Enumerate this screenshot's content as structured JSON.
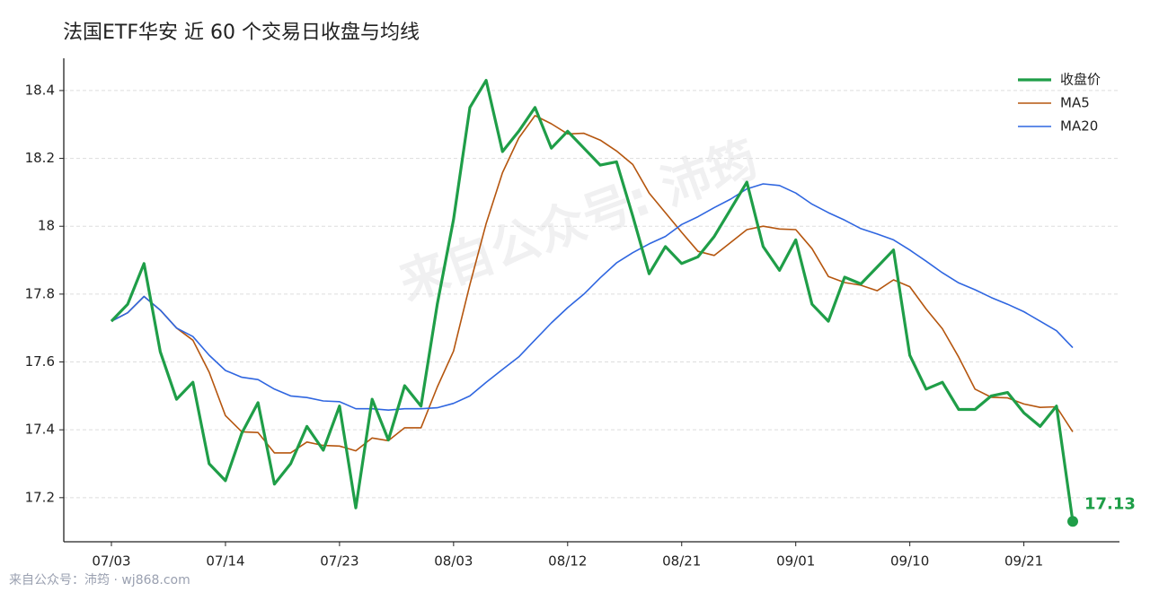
{
  "chart_data": {
    "type": "line",
    "title": "法国ETF华安 近 60 个交易日收盘与均线",
    "watermark": "来自公众号: 沛筠",
    "footer": "来自公众号：沛筠 · wj868.com",
    "categories": [
      "07/03",
      null,
      null,
      null,
      null,
      null,
      null,
      "07/14",
      null,
      null,
      null,
      null,
      null,
      null,
      "07/23",
      null,
      null,
      null,
      null,
      null,
      null,
      "08/03",
      null,
      null,
      null,
      null,
      null,
      null,
      "08/12",
      null,
      null,
      null,
      null,
      null,
      null,
      "08/21",
      null,
      null,
      null,
      null,
      null,
      null,
      "09/01",
      null,
      null,
      null,
      null,
      null,
      null,
      "09/10",
      null,
      null,
      null,
      null,
      null,
      null,
      "09/21",
      null,
      null,
      null
    ],
    "series": [
      {
        "name": "收盘价",
        "color": "#1f9e48",
        "values": [
          17.72,
          17.77,
          17.89,
          17.63,
          17.49,
          17.54,
          17.3,
          17.25,
          17.39,
          17.48,
          17.24,
          17.3,
          17.41,
          17.34,
          17.47,
          17.17,
          17.49,
          17.37,
          17.53,
          17.47,
          17.77,
          18.02,
          18.35,
          18.43,
          18.22,
          18.28,
          18.35,
          18.23,
          18.28,
          18.23,
          18.18,
          18.19,
          18.03,
          17.86,
          17.94,
          17.89,
          17.91,
          17.97,
          18.05,
          18.13,
          17.94,
          17.87,
          17.96,
          17.77,
          17.72,
          17.85,
          17.83,
          17.88,
          17.93,
          17.62,
          17.52,
          17.54,
          17.46,
          17.46,
          17.5,
          17.51,
          17.45,
          17.41,
          17.47,
          17.13
        ]
      },
      {
        "name": "MA5",
        "color": "#b5560f",
        "values": [
          17.72,
          17.745,
          17.793,
          17.753,
          17.7,
          17.664,
          17.57,
          17.442,
          17.394,
          17.392,
          17.332,
          17.332,
          17.364,
          17.354,
          17.352,
          17.338,
          17.376,
          17.368,
          17.406,
          17.406,
          17.526,
          17.632,
          17.828,
          18.008,
          18.158,
          18.26,
          18.326,
          18.302,
          18.272,
          18.274,
          18.254,
          18.222,
          18.182,
          18.098,
          18.04,
          17.982,
          17.926,
          17.914,
          17.952,
          17.99,
          18.0,
          17.992,
          17.99,
          17.934,
          17.852,
          17.834,
          17.826,
          17.81,
          17.842,
          17.822,
          17.756,
          17.698,
          17.614,
          17.52,
          17.496,
          17.494,
          17.476,
          17.466,
          17.468,
          17.394
        ]
      },
      {
        "name": "MA20",
        "color": "#2f66e0",
        "values": [
          17.72,
          17.745,
          17.793,
          17.753,
          17.7,
          17.675,
          17.62,
          17.575,
          17.555,
          17.548,
          17.52,
          17.5,
          17.495,
          17.485,
          17.483,
          17.462,
          17.462,
          17.458,
          17.462,
          17.462,
          17.465,
          17.478,
          17.5,
          17.54,
          17.578,
          17.615,
          17.665,
          17.715,
          17.76,
          17.8,
          17.848,
          17.892,
          17.922,
          17.948,
          17.97,
          18.005,
          18.028,
          18.055,
          18.08,
          18.11,
          18.125,
          18.12,
          18.098,
          18.065,
          18.04,
          18.018,
          17.993,
          17.977,
          17.96,
          17.93,
          17.897,
          17.863,
          17.833,
          17.813,
          17.79,
          17.77,
          17.748,
          17.72,
          17.692,
          17.642
        ]
      }
    ],
    "ylim": [
      17.07,
      18.495
    ],
    "yticks": [
      17.2,
      17.4,
      17.6,
      17.8,
      18.0,
      18.2,
      18.4
    ],
    "grid": true,
    "legend": "upper right"
  }
}
